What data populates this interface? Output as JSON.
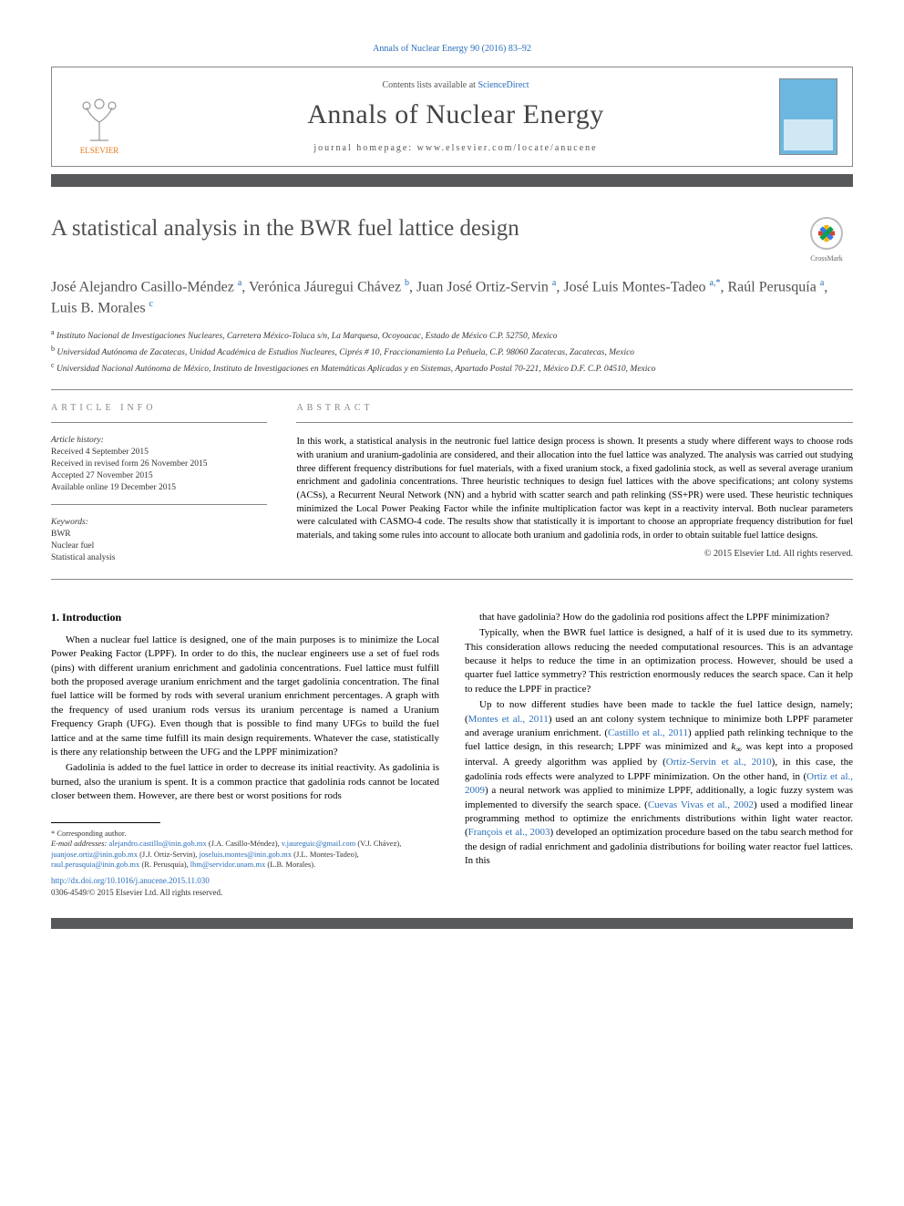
{
  "topline": "Annals of Nuclear Energy 90 (2016) 83–92",
  "header": {
    "contents_prefix": "Contents lists available at ",
    "contents_link": "ScienceDirect",
    "journal": "Annals of Nuclear Energy",
    "homepage_prefix": "journal homepage: ",
    "homepage_url": "www.elsevier.com/locate/anucene",
    "publisher": "ELSEVIER"
  },
  "colors": {
    "accent_bar": "#58595b",
    "link": "#2a6ebb",
    "elsevier_orange": "#e67817",
    "cover_blue": "#6bb7e0",
    "text_gray": "#505050"
  },
  "title": "A statistical analysis in the BWR fuel lattice design",
  "crossmark": "CrossMark",
  "authors_html": "José Alejandro Casillo-Méndez <sup>a</sup>, Verónica Jáuregui Chávez <sup>b</sup>, Juan José Ortiz-Servin <sup>a</sup>, José Luis Montes-Tadeo <sup>a,*</sup>, Raúl Perusquía <sup>a</sup>, Luis B. Morales <sup>c</sup>",
  "affiliations": [
    {
      "marker": "a",
      "text": "Instituto Nacional de Investigaciones Nucleares, Carretera México-Toluca s/n, La Marquesa, Ocoyoacac, Estado de México C.P. 52750, Mexico"
    },
    {
      "marker": "b",
      "text": "Universidad Autónoma de Zacatecas, Unidad Académica de Estudios Nucleares, Ciprés # 10, Fraccionamiento La Peñuela, C.P. 98060 Zacatecas, Zacatecas, Mexico"
    },
    {
      "marker": "c",
      "text": "Universidad Nacional Autónoma de México, Instituto de Investigaciones en Matemáticas Aplicadas y en Sistemas, Apartado Postal 70-221, México D.F. C.P. 04510, Mexico"
    }
  ],
  "info": {
    "label": "ARTICLE INFO",
    "history_head": "Article history:",
    "history": [
      "Received 4 September 2015",
      "Received in revised form 26 November 2015",
      "Accepted 27 November 2015",
      "Available online 19 December 2015"
    ],
    "keywords_head": "Keywords:",
    "keywords": [
      "BWR",
      "Nuclear fuel",
      "Statistical analysis"
    ]
  },
  "abstract": {
    "label": "ABSTRACT",
    "text": "In this work, a statistical analysis in the neutronic fuel lattice design process is shown. It presents a study where different ways to choose rods with uranium and uranium-gadolinia are considered, and their allocation into the fuel lattice was analyzed. The analysis was carried out studying three different frequency distributions for fuel materials, with a fixed uranium stock, a fixed gadolinia stock, as well as several average uranium enrichment and gadolinia concentrations. Three heuristic techniques to design fuel lattices with the above specifications; ant colony systems (ACSs), a Recurrent Neural Network (NN) and a hybrid with scatter search and path relinking (SS+PR) were used. These heuristic techniques minimized the Local Power Peaking Factor while the infinite multiplication factor was kept in a reactivity interval. Both nuclear parameters were calculated with CASMO-4 code. The results show that statistically it is important to choose an appropriate frequency distribution for fuel materials, and taking some rules into account to allocate both uranium and gadolinia rods, in order to obtain suitable fuel lattice designs.",
    "copyright": "© 2015 Elsevier Ltd. All rights reserved."
  },
  "body": {
    "section_head": "1. Introduction",
    "left_paras": [
      "When a nuclear fuel lattice is designed, one of the main purposes is to minimize the Local Power Peaking Factor (LPPF). In order to do this, the nuclear engineers use a set of fuel rods (pins) with different uranium enrichment and gadolinia concentrations. Fuel lattice must fulfill both the proposed average uranium enrichment and the target gadolinia concentration. The final fuel lattice will be formed by rods with several uranium enrichment percentages. A graph with the frequency of used uranium rods versus its uranium percentage is named a Uranium Frequency Graph (UFG). Even though that is possible to find many UFGs to build the fuel lattice and at the same time fulfill its main design requirements. Whatever the case, statistically is there any relationship between the UFG and the LPPF minimization?",
      "Gadolinia is added to the fuel lattice in order to decrease its initial reactivity. As gadolinia is burned, also the uranium is spent. It is a common practice that gadolinia rods cannot be located closer between them. However, are there best or worst positions for rods"
    ],
    "right_paras": [
      "that have gadolinia? How do the gadolinia rod positions affect the LPPF minimization?",
      "Typically, when the BWR fuel lattice is designed, a half of it is used due to its symmetry. This consideration allows reducing the needed computational resources. This is an advantage because it helps to reduce the time in an optimization process. However, should be used a quarter fuel lattice symmetry? This restriction enormously reduces the search space. Can it help to reduce the LPPF in practice?",
      "Up to now different studies have been made to tackle the fuel lattice design, namely; (<a>Montes et al., 2011</a>) used an ant colony system technique to minimize both LPPF parameter and average uranium enrichment. (<a>Castillo et al., 2011</a>) applied path relinking technique to the fuel lattice design, in this research; LPPF was minimized and <span class='ital'>k</span><sub>∞</sub> was kept into a proposed interval. A greedy algorithm was applied by (<a>Ortiz-Servin et al., 2010</a>), in this case, the gadolinia rods effects were analyzed to LPPF minimization. On the other hand, in (<a>Ortiz et al., 2009</a>) a neural network was applied to minimize LPPF, additionally, a logic fuzzy system was implemented to diversify the search space. (<a>Cuevas Vivas et al., 2002</a>) used a modified linear programming method to optimize the enrichments distributions within light water reactor. (<a>François et al., 2003</a>) developed an optimization procedure based on the tabu search method for the design of radial enrichment and gadolinia distributions for boiling water reactor fuel lattices. In this"
    ]
  },
  "footnotes": {
    "corresponding": "* Corresponding author.",
    "emails_label": "E-mail addresses:",
    "emails": [
      {
        "addr": "alejandro.castillo@inin.gob.mx",
        "who": "(J.A. Casillo-Méndez)"
      },
      {
        "addr": "v.jaureguic@gmail.com",
        "who": "(V.J. Chávez)"
      },
      {
        "addr": "juanjose.ortiz@inin.gob.mx",
        "who": "(J.J. Ortiz-Servin)"
      },
      {
        "addr": "joseluis.montes@inin.gob.mx",
        "who": "(J.L. Montes-Tadeo)"
      },
      {
        "addr": "raul.perusquia@inin.gob.mx",
        "who": "(R. Perusquía)"
      },
      {
        "addr": "lbm@servidor.unam.mx",
        "who": "(L.B. Morales)"
      }
    ]
  },
  "footer": {
    "doi": "http://dx.doi.org/10.1016/j.anucene.2015.11.030",
    "issn_line": "0306-4549/© 2015 Elsevier Ltd. All rights reserved."
  }
}
